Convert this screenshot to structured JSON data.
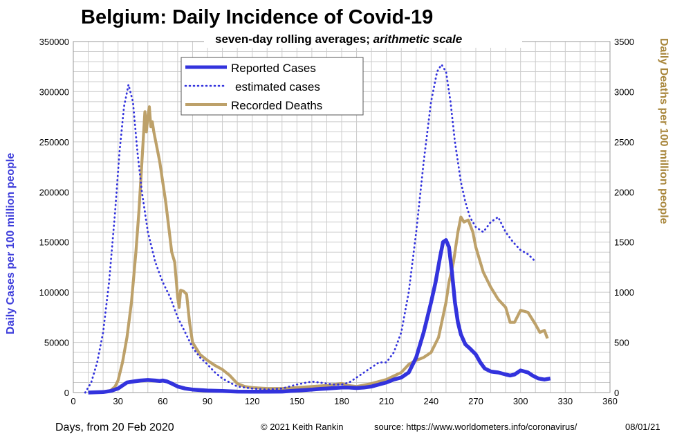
{
  "chart_data": {
    "type": "line",
    "title": "Belgium: Daily Incidence of Covid-19",
    "subtitle_main": "seven-day rolling averages; ",
    "subtitle_italic": "arithmetic scale",
    "xlabel": "Days, from 20 Feb 2020",
    "ylabel_left": "Daily Cases per 100 million people",
    "ylabel_right": "Daily Deaths per 100 million people",
    "xlim": [
      0,
      360
    ],
    "ylim_left": [
      0,
      350000
    ],
    "ylim_right": [
      0,
      3500
    ],
    "x_ticks": [
      0,
      30,
      60,
      90,
      120,
      150,
      180,
      210,
      240,
      270,
      300,
      330,
      360
    ],
    "x_tick_labels": [
      "0",
      "30",
      "60",
      "90",
      "120",
      "150",
      "180",
      "210",
      "240",
      "270",
      "300",
      "330",
      "360"
    ],
    "y_left_ticks": [
      0,
      50000,
      100000,
      150000,
      200000,
      250000,
      300000,
      350000
    ],
    "y_left_tick_labels": [
      "0",
      "50000",
      "100000",
      "150000",
      "200000",
      "250000",
      "300000",
      "350000"
    ],
    "y_right_ticks": [
      0,
      500,
      1000,
      1500,
      2000,
      2500,
      3000,
      3500
    ],
    "y_right_tick_labels": [
      "0",
      "500",
      "1000",
      "1500",
      "2000",
      "2500",
      "3000",
      "3500"
    ],
    "grid": true,
    "legend_position": "top-left",
    "series": [
      {
        "name": "Reported Cases",
        "axis": "left",
        "style": "solid-thick",
        "color": "#3333dd",
        "x": [
          10,
          20,
          25,
          30,
          33,
          36,
          40,
          45,
          50,
          55,
          58,
          60,
          63,
          66,
          70,
          75,
          80,
          90,
          100,
          110,
          120,
          130,
          140,
          150,
          160,
          165,
          170,
          175,
          180,
          185,
          190,
          195,
          200,
          205,
          210,
          215,
          220,
          225,
          230,
          235,
          240,
          243,
          246,
          248,
          250,
          252,
          254,
          256,
          258,
          260,
          263,
          266,
          270,
          273,
          276,
          280,
          285,
          290,
          293,
          296,
          300,
          305,
          308,
          312,
          316,
          320
        ],
        "y": [
          0,
          500,
          1500,
          4000,
          7000,
          10000,
          11000,
          12000,
          12500,
          12000,
          11500,
          12000,
          11000,
          9000,
          6000,
          4000,
          3000,
          2000,
          1500,
          1000,
          800,
          800,
          1000,
          2000,
          3000,
          3500,
          4000,
          4500,
          5000,
          5000,
          4500,
          5000,
          6000,
          8000,
          10000,
          13000,
          15000,
          20000,
          35000,
          60000,
          90000,
          110000,
          135000,
          150000,
          152000,
          145000,
          120000,
          90000,
          70000,
          58000,
          48000,
          44000,
          38000,
          30000,
          24000,
          21000,
          20000,
          18000,
          17000,
          18000,
          22000,
          20000,
          17000,
          14000,
          13000,
          14000
        ]
      },
      {
        "name": "estimated cases",
        "axis": "left",
        "style": "dotted",
        "color": "#3333dd",
        "x": [
          8,
          12,
          16,
          20,
          24,
          28,
          31,
          34,
          37,
          40,
          43,
          46,
          50,
          55,
          60,
          65,
          70,
          75,
          80,
          85,
          90,
          95,
          100,
          105,
          110,
          120,
          130,
          140,
          150,
          160,
          165,
          170,
          175,
          180,
          185,
          190,
          195,
          200,
          205,
          210,
          215,
          220,
          225,
          230,
          235,
          240,
          244,
          247,
          250,
          253,
          256,
          260,
          263,
          266,
          270,
          275,
          280,
          285,
          290,
          295,
          300,
          305,
          309
        ],
        "y": [
          0,
          10000,
          30000,
          60000,
          110000,
          180000,
          240000,
          285000,
          307000,
          290000,
          240000,
          200000,
          160000,
          130000,
          110000,
          95000,
          75000,
          60000,
          45000,
          35000,
          28000,
          20000,
          14000,
          10000,
          6000,
          4000,
          3000,
          4000,
          8000,
          11000,
          10000,
          9000,
          8000,
          8000,
          10000,
          15000,
          20000,
          25000,
          30000,
          30000,
          40000,
          60000,
          100000,
          160000,
          230000,
          290000,
          320000,
          327000,
          320000,
          290000,
          250000,
          210000,
          190000,
          175000,
          165000,
          160000,
          170000,
          175000,
          160000,
          150000,
          142000,
          138000,
          132000
        ]
      },
      {
        "name": "Recorded Deaths",
        "axis": "right",
        "style": "solid",
        "color": "#bda16a",
        "x": [
          20,
          25,
          28,
          30,
          33,
          36,
          39,
          42,
          44,
          46,
          48,
          49,
          50,
          51,
          52,
          53,
          54,
          56,
          58,
          60,
          62,
          64,
          66,
          68,
          70,
          71,
          72,
          74,
          76,
          78,
          80,
          85,
          90,
          95,
          100,
          105,
          110,
          115,
          120,
          130,
          140,
          150,
          160,
          170,
          175,
          180,
          185,
          190,
          200,
          210,
          220,
          225,
          230,
          235,
          240,
          245,
          250,
          252,
          255,
          258,
          260,
          262,
          265,
          268,
          270,
          275,
          280,
          285,
          290,
          293,
          296,
          300,
          305,
          310,
          313,
          316,
          318
        ],
        "y": [
          5,
          20,
          60,
          120,
          300,
          550,
          900,
          1400,
          1800,
          2300,
          2800,
          2600,
          2750,
          2850,
          2650,
          2700,
          2600,
          2450,
          2300,
          2100,
          1900,
          1650,
          1400,
          1300,
          950,
          850,
          1020,
          1010,
          980,
          700,
          500,
          380,
          320,
          270,
          230,
          170,
          90,
          60,
          50,
          40,
          40,
          50,
          60,
          70,
          80,
          90,
          70,
          60,
          90,
          130,
          200,
          280,
          320,
          350,
          400,
          550,
          900,
          1100,
          1300,
          1600,
          1750,
          1700,
          1720,
          1600,
          1450,
          1200,
          1050,
          930,
          850,
          700,
          700,
          820,
          800,
          680,
          600,
          620,
          540
        ]
      }
    ]
  },
  "footer": {
    "copyright": "© 2021  Keith  Rankin",
    "source": "source:  https://www.worldometers.info/coronavirus/",
    "date": "08/01/21"
  },
  "colors": {
    "cases": "#3333dd",
    "deaths": "#bda16a",
    "left_axis_label": "#3d3ddb",
    "right_axis_label": "#a8863c",
    "grid": "#c8c8c8"
  }
}
